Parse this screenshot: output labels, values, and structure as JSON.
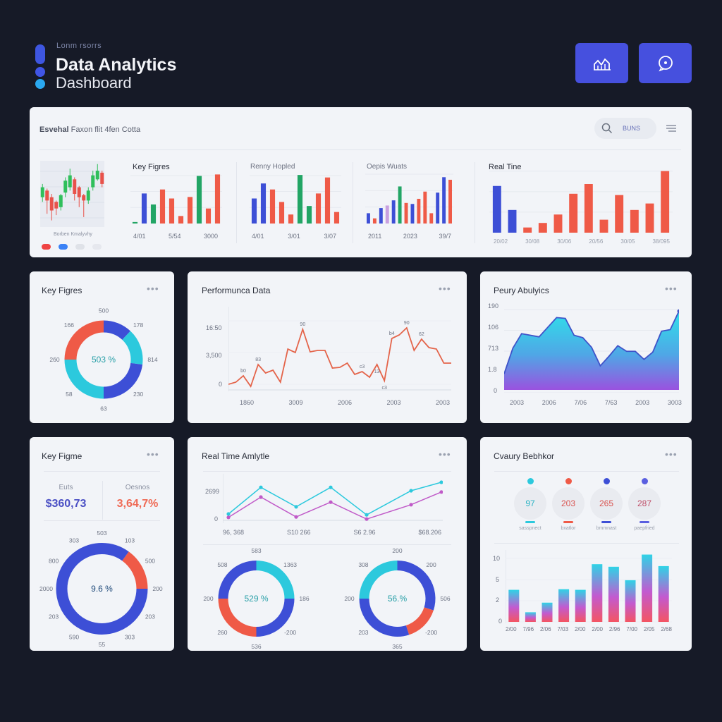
{
  "colors": {
    "blue": "#3d4fd6",
    "red": "#ef5a47",
    "green": "#22a565",
    "cyan": "#2cc9dd",
    "pink": "#c05ac8",
    "lilac": "#c9a0e0",
    "indigo": "#5a5fe0"
  },
  "header": {
    "kicker": "Lonm rsorrs",
    "title": "Data Analytics",
    "subtitle": "Dashboard",
    "buttons": [
      {
        "icon": "chart-icon"
      },
      {
        "icon": "chat-icon"
      }
    ]
  },
  "top_panel": {
    "title_bold": "Esvehal",
    "title_rest": "Faxon flit 4fen Cotta",
    "search_label": "BUNS",
    "candle": {
      "caption": "Borben Kmalyvhy",
      "candles": [
        [
          45,
          60,
          65,
          38
        ],
        [
          55,
          40,
          58,
          20
        ],
        [
          45,
          25,
          50,
          10
        ],
        [
          38,
          28,
          40,
          18
        ],
        [
          30,
          48,
          50,
          25
        ],
        [
          52,
          70,
          75,
          45
        ],
        [
          60,
          78,
          88,
          55
        ],
        [
          72,
          50,
          75,
          40
        ],
        [
          60,
          45,
          62,
          30
        ],
        [
          48,
          40,
          50,
          15
        ],
        [
          40,
          55,
          60,
          35
        ],
        [
          60,
          78,
          85,
          55
        ],
        [
          72,
          85,
          95,
          70
        ],
        [
          82,
          65,
          85,
          60
        ]
      ],
      "legend": [
        "#ef4444",
        "#3b82f6",
        "#dfe2e8",
        "#e6e8ee"
      ]
    },
    "sections": [
      {
        "title": "Key Figres",
        "x_labels": [
          "4/01",
          "5/54",
          "3000"
        ],
        "bars": [
          [
            3,
            "green"
          ],
          [
            60,
            "blue"
          ],
          [
            38,
            "green"
          ],
          [
            68,
            "red"
          ],
          [
            50,
            "red"
          ],
          [
            15,
            "red"
          ],
          [
            53,
            "red"
          ],
          [
            95,
            "green"
          ],
          [
            30,
            "red"
          ],
          [
            98,
            "red"
          ]
        ]
      },
      {
        "title": "Renny Hopled",
        "x_labels": [
          "4/01",
          "3/01",
          "3/07"
        ],
        "bars": [
          [
            50,
            "blue"
          ],
          [
            80,
            "blue"
          ],
          [
            68,
            "red"
          ],
          [
            43,
            "red"
          ],
          [
            18,
            "red"
          ],
          [
            97,
            "green"
          ],
          [
            35,
            "green"
          ],
          [
            60,
            "red"
          ],
          [
            92,
            "red"
          ],
          [
            23,
            "red"
          ]
        ]
      },
      {
        "title": "Oepis Wuats",
        "x_labels": [
          "2011",
          "2023",
          "39/7"
        ],
        "bars": [
          [
            20,
            "blue"
          ],
          [
            10,
            "red"
          ],
          [
            30,
            "blue"
          ],
          [
            35,
            "lilac"
          ],
          [
            45,
            "blue"
          ],
          [
            72,
            "green"
          ],
          [
            40,
            "red"
          ],
          [
            38,
            "blue"
          ],
          [
            48,
            "red"
          ],
          [
            62,
            "red"
          ],
          [
            20,
            "red"
          ],
          [
            60,
            "blue"
          ],
          [
            90,
            "blue"
          ],
          [
            85,
            "red"
          ]
        ]
      },
      {
        "title": "Real Tine",
        "x_labels": [
          "20/02",
          "30/08",
          "30/06",
          "20/56",
          "30/05",
          "38/095"
        ],
        "bars": [
          [
            72,
            "blue"
          ],
          [
            35,
            "blue"
          ],
          [
            8,
            "red"
          ],
          [
            15,
            "red"
          ],
          [
            28,
            "red"
          ],
          [
            60,
            "red"
          ],
          [
            75,
            "red"
          ],
          [
            20,
            "red"
          ],
          [
            58,
            "red"
          ],
          [
            35,
            "red"
          ],
          [
            45,
            "red"
          ],
          [
            95,
            "red"
          ]
        ]
      }
    ]
  },
  "key_figures": {
    "title": "Key Figres",
    "center": "503 %",
    "labels": [
      "500",
      "178",
      "814",
      "230",
      "63",
      "58",
      "2б0",
      "166"
    ],
    "segments": [
      [
        0.12,
        "blue"
      ],
      [
        0.15,
        "cyan"
      ],
      [
        0.23,
        "blue"
      ],
      [
        0.25,
        "cyan"
      ],
      [
        0.25,
        "red"
      ]
    ]
  },
  "performance": {
    "title": "Performunca Data",
    "y_labels": [
      "16:50",
      "3,500",
      "0"
    ],
    "x_labels": [
      "1860",
      "3009",
      "2006",
      "2003",
      "2003"
    ],
    "values": [
      0,
      3,
      12,
      -3,
      28,
      16,
      20,
      3,
      50,
      45,
      78,
      46,
      48,
      48,
      23,
      24,
      30,
      14,
      18,
      10,
      28,
      5,
      65,
      70,
      80,
      48,
      64,
      52,
      50,
      30,
      30
    ],
    "annotations": [
      "b0",
      "83",
      "90",
      "c3",
      "13",
      "c3",
      "b4",
      "90",
      "62"
    ]
  },
  "area": {
    "title": "Peury Abulyics",
    "y_labels": [
      "190",
      "106",
      "713",
      "1.8",
      "0"
    ],
    "x_labels": [
      "2003",
      "2006",
      "7/06",
      "7/63",
      "2003",
      "3003"
    ],
    "values": [
      20,
      52,
      70,
      68,
      66,
      78,
      90,
      89,
      68,
      65,
      53,
      30,
      42,
      55,
      48,
      48,
      38,
      47,
      73,
      75,
      98
    ]
  },
  "key_figure_2": {
    "title": "Key Figme",
    "stats": [
      {
        "label": "Euts",
        "value": "$360,73",
        "color": "blue"
      },
      {
        "label": "Oesnos",
        "value": "3,64,7%",
        "color": "red"
      }
    ],
    "center": "9.6 %",
    "labels": [
      "503",
      "103",
      "500",
      "200",
      "203",
      "303",
      "55",
      "590",
      "203",
      "2000",
      "800",
      "303"
    ],
    "segments": [
      [
        0.1,
        "blue"
      ],
      [
        0.15,
        "red"
      ],
      [
        0.75,
        "blue"
      ]
    ]
  },
  "realtime": {
    "title": "Real Time Amlytle",
    "y_labels": [
      "2699",
      "0"
    ],
    "x_labels": [
      "96, 368",
      "S10 266",
      "S6 2.96",
      "$68.206"
    ],
    "series": [
      {
        "color": "cyan",
        "values": [
          15,
          78,
          32,
          78,
          13,
          70,
          90
        ]
      },
      {
        "color": "pink",
        "values": [
          7,
          55,
          8,
          43,
          3,
          37,
          67
        ]
      }
    ],
    "donuts": [
      {
        "center": "529 %",
        "labels": [
          "583",
          "1363",
          "186",
          "-200",
          "536",
          "260",
          "200",
          "508"
        ],
        "segments": [
          [
            0.25,
            "cyan"
          ],
          [
            0.25,
            "blue"
          ],
          [
            0.25,
            "red"
          ],
          [
            0.25,
            "blue"
          ]
        ]
      },
      {
        "center": "56.%",
        "labels": [
          "200",
          "200",
          "506",
          "-200",
          "365",
          "203",
          "200",
          "308"
        ],
        "segments": [
          [
            0.3,
            "blue"
          ],
          [
            0.15,
            "red"
          ],
          [
            0.3,
            "blue"
          ],
          [
            0.25,
            "cyan"
          ]
        ]
      }
    ]
  },
  "overview": {
    "title": "Cvaury Bebhkor",
    "stats": [
      {
        "value": "97",
        "label": "sasspnect",
        "color": "cyan"
      },
      {
        "value": "203",
        "label": "bxatlor",
        "color": "red"
      },
      {
        "value": "265",
        "label": "bmmnast",
        "color": "blue"
      },
      {
        "value": "287",
        "label": "paepfried",
        "color": "indigo"
      }
    ],
    "y_labels": [
      "10",
      "5",
      "2",
      "0"
    ],
    "x_labels": [
      "2/00",
      "7/96",
      "2/06",
      "7/03",
      "2/00",
      "2/00",
      "2/96",
      "7/00",
      "2/05",
      "2/68"
    ],
    "values": [
      5,
      1.5,
      3,
      5.1,
      5,
      9,
      8.6,
      6.5,
      10.5,
      8.7
    ],
    "ymax": 11
  }
}
